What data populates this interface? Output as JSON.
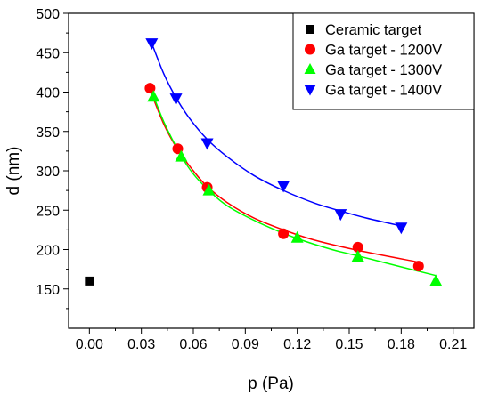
{
  "chart_data": {
    "type": "scatter",
    "title": "",
    "xlabel": "p (Pa)",
    "ylabel": "d (nm)",
    "xlim": [
      -0.012,
      0.222
    ],
    "ylim": [
      100,
      500
    ],
    "x_ticks": [
      "0.00",
      "0.03",
      "0.06",
      "0.09",
      "0.12",
      "0.15",
      "0.18",
      "0.21"
    ],
    "x_tick_values": [
      0,
      0.03,
      0.06,
      0.09,
      0.12,
      0.15,
      0.18,
      0.21
    ],
    "y_ticks": [
      "150",
      "200",
      "250",
      "300",
      "350",
      "400",
      "450",
      "500"
    ],
    "y_tick_values": [
      150,
      200,
      250,
      300,
      350,
      400,
      450,
      500
    ],
    "grid": false,
    "legend_position": "top-right",
    "series": [
      {
        "name": "Ceramic target",
        "marker": "square",
        "color": "#000000",
        "points": [
          [
            0.0,
            160
          ]
        ],
        "fit": []
      },
      {
        "name": "Ga target - 1200V",
        "marker": "circle",
        "color": "#ff0000",
        "points": [
          [
            0.035,
            405
          ],
          [
            0.051,
            328
          ],
          [
            0.068,
            279
          ],
          [
            0.112,
            220
          ],
          [
            0.155,
            203
          ],
          [
            0.19,
            179
          ]
        ],
        "fit": [
          [
            0.035,
            403
          ],
          [
            0.043,
            359
          ],
          [
            0.051,
            327
          ],
          [
            0.06,
            300
          ],
          [
            0.068,
            280
          ],
          [
            0.08,
            259
          ],
          [
            0.095,
            240
          ],
          [
            0.112,
            225
          ],
          [
            0.13,
            212
          ],
          [
            0.155,
            199
          ],
          [
            0.19,
            184
          ]
        ]
      },
      {
        "name": "Ga target - 1300V",
        "marker": "triangle-up",
        "color": "#00ff00",
        "points": [
          [
            0.037,
            394
          ],
          [
            0.053,
            318
          ],
          [
            0.069,
            275
          ],
          [
            0.12,
            215
          ],
          [
            0.155,
            191
          ],
          [
            0.2,
            160
          ]
        ],
        "fit": [
          [
            0.035,
            407
          ],
          [
            0.043,
            362
          ],
          [
            0.053,
            319
          ],
          [
            0.06,
            296
          ],
          [
            0.069,
            275
          ],
          [
            0.08,
            255
          ],
          [
            0.1,
            232
          ],
          [
            0.12,
            214
          ],
          [
            0.14,
            200
          ],
          [
            0.155,
            192
          ],
          [
            0.18,
            178
          ],
          [
            0.2,
            167
          ]
        ]
      },
      {
        "name": "Ga target - 1400V",
        "marker": "triangle-down",
        "color": "#0000ff",
        "points": [
          [
            0.036,
            462
          ],
          [
            0.05,
            392
          ],
          [
            0.068,
            335
          ],
          [
            0.112,
            281
          ],
          [
            0.145,
            245
          ],
          [
            0.18,
            228
          ]
        ],
        "fit": [
          [
            0.036,
            462
          ],
          [
            0.043,
            423
          ],
          [
            0.05,
            393
          ],
          [
            0.058,
            366
          ],
          [
            0.068,
            340
          ],
          [
            0.08,
            317
          ],
          [
            0.095,
            294
          ],
          [
            0.112,
            275
          ],
          [
            0.13,
            259
          ],
          [
            0.145,
            249
          ],
          [
            0.16,
            240
          ],
          [
            0.18,
            230
          ]
        ]
      }
    ]
  }
}
